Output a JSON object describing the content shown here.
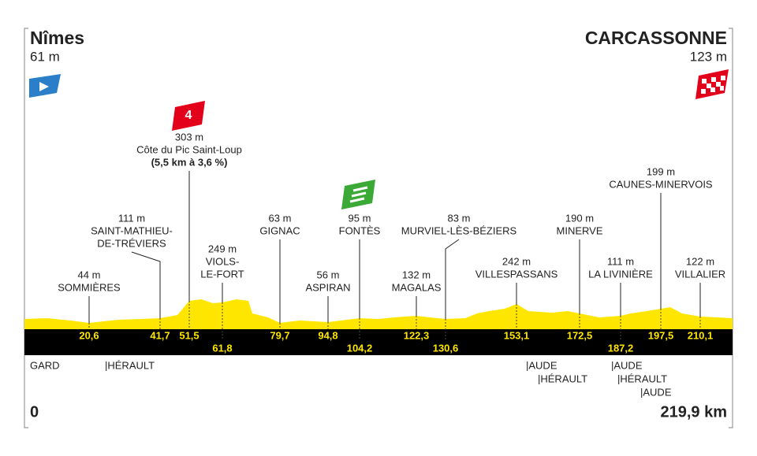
{
  "start": {
    "name": "Nîmes",
    "altitude": "61 m",
    "distance": "0"
  },
  "finish": {
    "name": "CARCASSONNE",
    "altitude": "123 m",
    "distance": "219,9 km"
  },
  "climb_category": "4",
  "waypoints": [
    {
      "altitude": "44 m",
      "name": [
        "SOMMIÈRES"
      ],
      "km": "20,6"
    },
    {
      "altitude": "111 m",
      "name": [
        "SAINT-MATHIEU-",
        "DE-TRÉVIERS"
      ],
      "km": "41,7"
    },
    {
      "altitude": "303 m",
      "name": [
        "Côte du Pic Saint-Loup",
        "(5,5 km à 3,6 %)"
      ],
      "km": "51,5"
    },
    {
      "altitude": "249 m",
      "name": [
        "VIOLS-",
        "LE-FORT"
      ],
      "km": "61,8"
    },
    {
      "altitude": "63 m",
      "name": [
        "GIGNAC"
      ],
      "km": "79,7"
    },
    {
      "altitude": "56 m",
      "name": [
        "ASPIRAN"
      ],
      "km": "94,8"
    },
    {
      "altitude": "95 m",
      "name": [
        "FONTÈS"
      ],
      "km": "104,2"
    },
    {
      "altitude": "132 m",
      "name": [
        "MAGALAS"
      ],
      "km": "122,3"
    },
    {
      "altitude": "83 m",
      "name": [
        "MURVIEL-LÈS-BÉZIERS"
      ],
      "km": "130,6"
    },
    {
      "altitude": "242 m",
      "name": [
        "VILLESPASSANS"
      ],
      "km": "153,1"
    },
    {
      "altitude": "190 m",
      "name": [
        "MINERVE"
      ],
      "km": "172,5"
    },
    {
      "altitude": "111 m",
      "name": [
        "LA LIVINIÈRE"
      ],
      "km": "187,2"
    },
    {
      "altitude": "199 m",
      "name": [
        "CAUNES-MINERVOIS"
      ],
      "km": "197,5"
    },
    {
      "altitude": "122 m",
      "name": [
        "VILLALIER"
      ],
      "km": "210,1"
    }
  ],
  "departments": [
    "GARD",
    "|HÉRAULT",
    "|AUDE",
    "|HÉRAULT",
    "|AUDE",
    "|HÉRAULT",
    "|AUDE"
  ]
}
